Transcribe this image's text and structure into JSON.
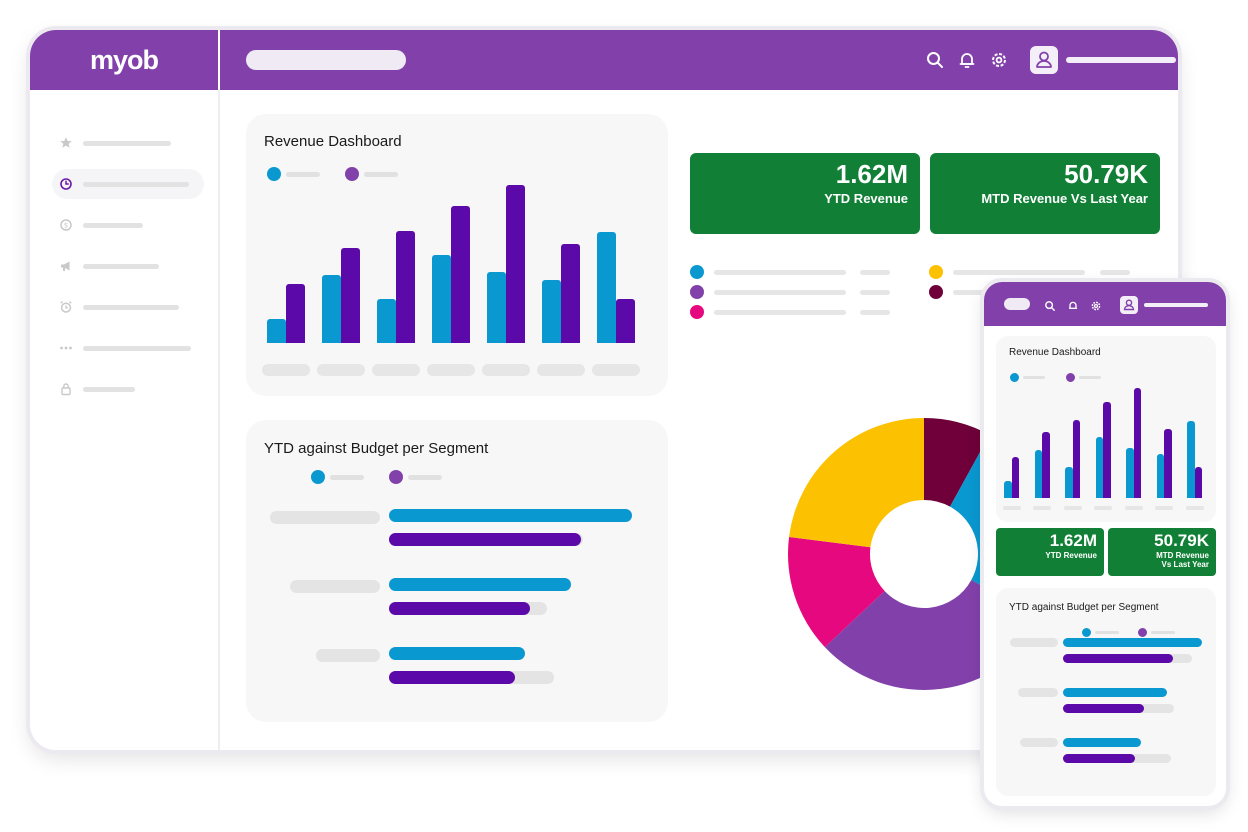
{
  "brand": {
    "logo": "myob",
    "primary": "#8241aa",
    "green": "#118036",
    "series_blue": "#0a98d0",
    "series_purple": "#5b09a8"
  },
  "header": {
    "icons": [
      "search-icon",
      "bell-icon",
      "gear-icon",
      "user-icon"
    ]
  },
  "sidebar": {
    "icons": [
      "star-icon",
      "clock-icon",
      "dollar-icon",
      "megaphone-icon",
      "alarm-icon",
      "more-icon",
      "lock-icon"
    ],
    "active_index": 1
  },
  "revenue_card": {
    "title": "Revenue Dashboard",
    "chart_data": {
      "type": "bar",
      "series": [
        {
          "color": "#0a98d0",
          "values": [
            22,
            62,
            40,
            80,
            65,
            57,
            101
          ]
        },
        {
          "color": "#5b09a8",
          "values": [
            54,
            86,
            102,
            125,
            144,
            90,
            40
          ]
        }
      ],
      "ylim": [
        0,
        150
      ]
    }
  },
  "segment_card": {
    "title": "YTD against Budget per Segment",
    "chart_data": {
      "type": "bar",
      "orientation": "horizontal",
      "series": [
        {
          "color": "#0a98d0",
          "values": [
            100,
            75,
            56
          ]
        },
        {
          "color": "#5b09a8",
          "values": [
            79,
            58,
            52
          ]
        }
      ],
      "max": [
        100,
        100,
        100
      ]
    }
  },
  "kpis": [
    {
      "value": "1.62M",
      "label": "YTD Revenue"
    },
    {
      "value": "50.79K",
      "label": "MTD Revenue Vs Last Year"
    }
  ],
  "phone_kpis": [
    {
      "value": "1.62M",
      "label": "YTD Revenue"
    },
    {
      "value": "50.79K",
      "label_line1": "MTD Revenue",
      "label_line2": "Vs Last Year"
    }
  ],
  "donut_legend_colors": [
    "#0a98d0",
    "#8241aa",
    "#e5087e",
    "#fcc100",
    "#6f0039"
  ],
  "donut": {
    "chart_data": {
      "type": "pie",
      "style": "donut",
      "slices": [
        {
          "color": "#6f0039",
          "value": 8
        },
        {
          "color": "#0a98d0",
          "value": 25
        },
        {
          "color": "#8241aa",
          "value": 30
        },
        {
          "color": "#e5087e",
          "value": 14
        },
        {
          "color": "#fcc100",
          "value": 23
        }
      ]
    }
  }
}
